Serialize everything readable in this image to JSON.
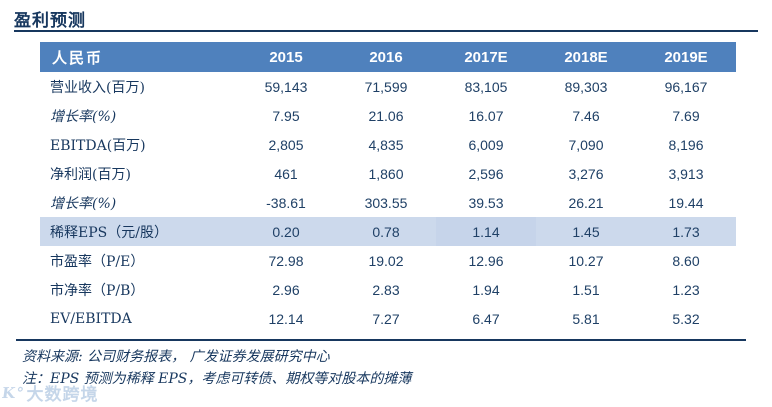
{
  "title": "盈利预测",
  "table": {
    "header": [
      "人民币",
      "2015",
      "2016",
      "2017E",
      "2018E",
      "2019E"
    ],
    "highlight_column": "2017E",
    "rows": [
      {
        "label": "营业收入(百万)",
        "values": [
          "59,143",
          "71,599",
          "83,105",
          "89,303",
          "96,167"
        ]
      },
      {
        "label": "增长率(%)",
        "values": [
          "7.95",
          "21.06",
          "16.07",
          "7.46",
          "7.69"
        ]
      },
      {
        "label": "EBITDA(百万)",
        "values": [
          "2,805",
          "4,835",
          "6,009",
          "7,090",
          "8,196"
        ]
      },
      {
        "label": "净利润(百万)",
        "values": [
          "461",
          "1,860",
          "2,596",
          "3,276",
          "3,913"
        ]
      },
      {
        "label": "增长率(%)",
        "values": [
          "-38.61",
          "303.55",
          "39.53",
          "26.21",
          "19.44"
        ]
      },
      {
        "label": "稀释EPS（元/股）",
        "values": [
          "0.20",
          "0.78",
          "1.14",
          "1.45",
          "1.73"
        ]
      },
      {
        "label": "市盈率（P/E）",
        "values": [
          "72.98",
          "19.02",
          "12.96",
          "10.27",
          "8.60"
        ]
      },
      {
        "label": "市净率（P/B）",
        "values": [
          "2.96",
          "2.83",
          "1.94",
          "1.51",
          "1.23"
        ]
      },
      {
        "label": "EV/EBITDA",
        "values": [
          "12.14",
          "7.27",
          "6.47",
          "5.81",
          "5.32"
        ]
      }
    ]
  },
  "footer": {
    "source": "资料来源: 公司财务报表， 广发证券发展研究中心",
    "note": "注：EPS 预测为稀释 EPS，考虑可转债、期权等对股本的摊薄"
  },
  "watermark": {
    "logo_glyph": "K°",
    "text": "大数跨境"
  },
  "colors": {
    "header_bg": "#4f81bd",
    "navy": "#17375e",
    "column_highlight": "#dce6f1",
    "row_highlight": "#ccd9ec"
  }
}
